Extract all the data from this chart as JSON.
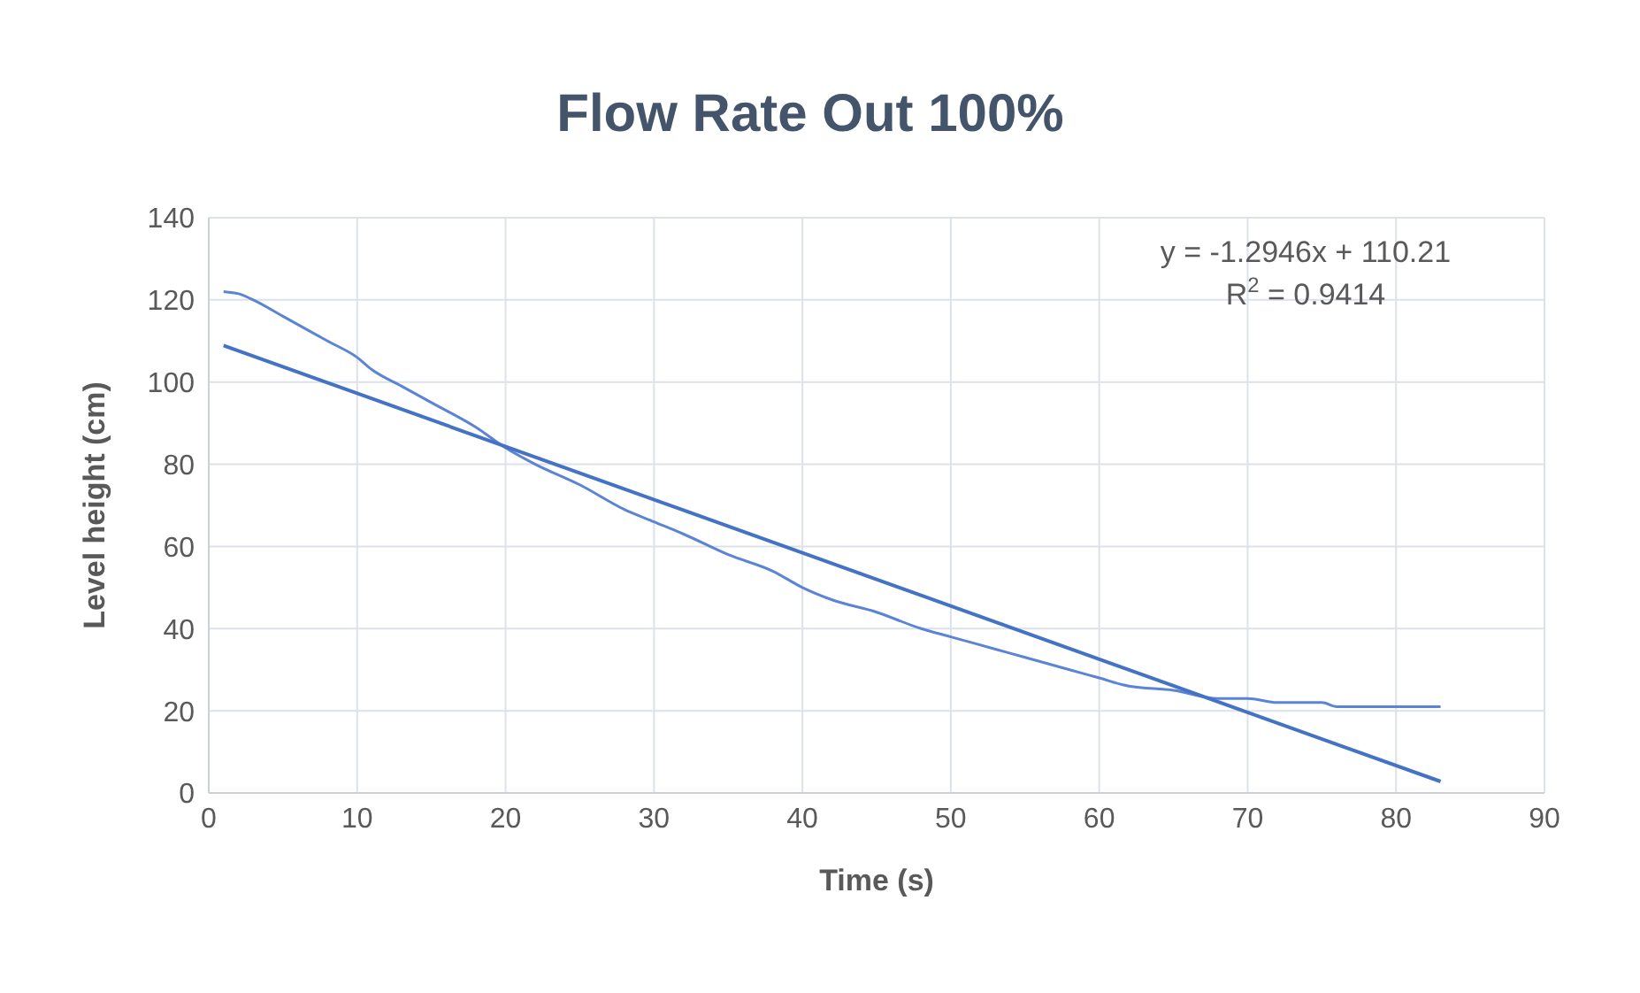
{
  "chart_data": {
    "type": "line",
    "title": "Flow Rate Out 100%",
    "xlabel": "Time (s)",
    "ylabel": "Level height (cm)",
    "annotations": [
      "y = -1.2946x + 110.21",
      "R$^{2}$ = 0.9414"
    ],
    "series": [
      {
        "color": "#5b84d6",
        "x": [
          1,
          2,
          3,
          5,
          8,
          10,
          11,
          13,
          15,
          18,
          20,
          22,
          25,
          28,
          30,
          32,
          35,
          38,
          40,
          42,
          45,
          48,
          50,
          53,
          55,
          58,
          60,
          62,
          65,
          68,
          70,
          72,
          75,
          76,
          80,
          83
        ],
        "values": [
          122,
          121.5,
          120,
          116,
          110,
          106,
          103,
          99,
          95,
          89,
          84,
          80,
          75,
          69,
          66,
          63,
          58,
          54,
          50,
          47,
          44,
          40,
          38,
          35,
          33,
          30,
          28,
          26,
          25,
          23,
          23,
          22,
          22,
          21,
          21,
          21
        ]
      },
      {
        "color": "#4472c4",
        "x": [
          1,
          83
        ],
        "values": [
          108.9,
          2.8
        ]
      }
    ],
    "xlim": [
      0,
      90
    ],
    "xticks": [
      0,
      10,
      20,
      30,
      40,
      50,
      60,
      70,
      80,
      90
    ],
    "ylim": [
      0,
      140
    ],
    "yticks": [
      0,
      20,
      40,
      60,
      80,
      100,
      120,
      140
    ],
    "grid": true,
    "marker": "none",
    "line_style": "solid"
  }
}
